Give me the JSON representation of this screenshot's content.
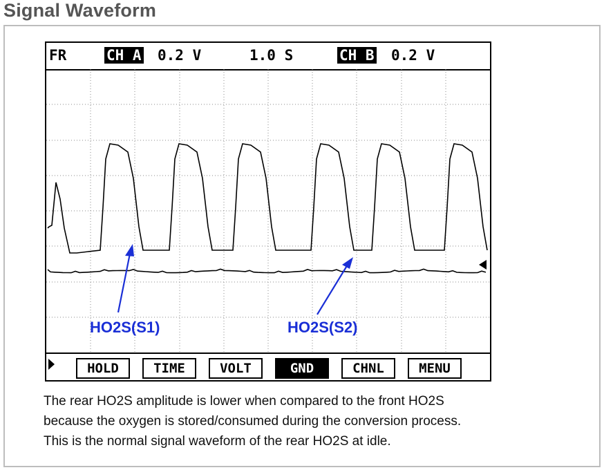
{
  "heading": "Signal Waveform",
  "scope": {
    "status": {
      "mode": "FR",
      "ch_a_label": "CH A",
      "ch_a_scale": "0.2 V",
      "timebase": "1.0 S",
      "ch_b_label": "CH B",
      "ch_b_scale": "0.2 V"
    },
    "annotations": {
      "s1": "HO2S(S1)",
      "s2": "HO2S(S2)"
    },
    "softkeys": {
      "hold": "HOLD",
      "time": "TIME",
      "volt": "VOLT",
      "gnd": "GND",
      "chnl": "CHNL",
      "menu": "MENU"
    },
    "active_key": "GND",
    "colors": {
      "annotation": "#1a2fd6",
      "trace": "#000000"
    }
  },
  "caption": {
    "line1": "The rear HO2S amplitude is lower when compared to the front HO2S",
    "line2": "because the oxygen is stored/consumed during the conversion process.",
    "line3": "This is the normal signal waveform of the rear HO2S at idle."
  }
}
